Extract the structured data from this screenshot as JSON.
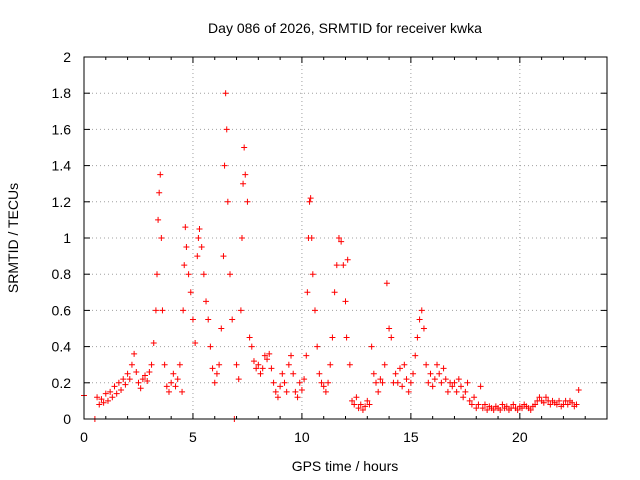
{
  "chart_data": {
    "type": "scatter",
    "title": "Day 086 of 2026, SRMTID for receiver kwka",
    "xlabel": "GPS time / hours",
    "ylabel": "SRMTID / TECUs",
    "xlim": [
      0,
      24
    ],
    "ylim": [
      0,
      2
    ],
    "xticks": [
      "0",
      "5",
      "10",
      "15",
      "20"
    ],
    "yticks": [
      "0",
      "0.2",
      "0.4",
      "0.6",
      "0.8",
      "1",
      "1.2",
      "1.4",
      "1.6",
      "1.8",
      "2"
    ],
    "grid": true,
    "marker": "+",
    "color": "#ff0000",
    "series": [
      {
        "name": "kwka",
        "points": [
          [
            0.0,
            0.13
          ],
          [
            0.5,
            0.0
          ],
          [
            0.6,
            0.12
          ],
          [
            0.7,
            0.08
          ],
          [
            0.8,
            0.11
          ],
          [
            0.9,
            0.09
          ],
          [
            1.0,
            0.14
          ],
          [
            1.1,
            0.1
          ],
          [
            1.2,
            0.15
          ],
          [
            1.3,
            0.12
          ],
          [
            1.4,
            0.18
          ],
          [
            1.5,
            0.14
          ],
          [
            1.6,
            0.2
          ],
          [
            1.7,
            0.16
          ],
          [
            1.8,
            0.22
          ],
          [
            1.9,
            0.19
          ],
          [
            2.0,
            0.25
          ],
          [
            2.1,
            0.22
          ],
          [
            2.2,
            0.3
          ],
          [
            2.3,
            0.36
          ],
          [
            2.4,
            0.26
          ],
          [
            2.5,
            0.2
          ],
          [
            2.6,
            0.17
          ],
          [
            2.7,
            0.22
          ],
          [
            2.8,
            0.24
          ],
          [
            2.9,
            0.21
          ],
          [
            3.0,
            0.26
          ],
          [
            3.1,
            0.3
          ],
          [
            3.2,
            0.42
          ],
          [
            3.3,
            0.6
          ],
          [
            3.35,
            0.8
          ],
          [
            3.4,
            1.1
          ],
          [
            3.45,
            1.25
          ],
          [
            3.5,
            1.35
          ],
          [
            3.55,
            1.0
          ],
          [
            3.6,
            0.6
          ],
          [
            3.7,
            0.3
          ],
          [
            3.8,
            0.18
          ],
          [
            3.9,
            0.15
          ],
          [
            4.0,
            0.2
          ],
          [
            4.1,
            0.25
          ],
          [
            4.2,
            0.18
          ],
          [
            4.3,
            0.22
          ],
          [
            4.4,
            0.3
          ],
          [
            4.5,
            0.15
          ],
          [
            4.55,
            0.6
          ],
          [
            4.6,
            0.85
          ],
          [
            4.65,
            1.06
          ],
          [
            4.7,
            0.95
          ],
          [
            4.8,
            0.8
          ],
          [
            4.9,
            0.7
          ],
          [
            5.0,
            0.55
          ],
          [
            5.1,
            0.42
          ],
          [
            5.2,
            0.9
          ],
          [
            5.25,
            1.0
          ],
          [
            5.3,
            1.05
          ],
          [
            5.4,
            0.95
          ],
          [
            5.5,
            0.8
          ],
          [
            5.6,
            0.65
          ],
          [
            5.7,
            0.55
          ],
          [
            5.8,
            0.4
          ],
          [
            5.9,
            0.28
          ],
          [
            6.0,
            0.2
          ],
          [
            6.1,
            0.25
          ],
          [
            6.2,
            0.3
          ],
          [
            6.3,
            0.5
          ],
          [
            6.4,
            0.9
          ],
          [
            6.45,
            1.4
          ],
          [
            6.5,
            1.8
          ],
          [
            6.55,
            1.6
          ],
          [
            6.6,
            1.2
          ],
          [
            6.7,
            0.8
          ],
          [
            6.8,
            0.55
          ],
          [
            6.9,
            0.0
          ],
          [
            7.0,
            0.3
          ],
          [
            7.1,
            0.22
          ],
          [
            7.2,
            0.6
          ],
          [
            7.25,
            1.0
          ],
          [
            7.3,
            1.3
          ],
          [
            7.35,
            1.5
          ],
          [
            7.4,
            1.35
          ],
          [
            7.5,
            1.2
          ],
          [
            7.6,
            0.45
          ],
          [
            7.7,
            0.4
          ],
          [
            7.8,
            0.32
          ],
          [
            7.9,
            0.28
          ],
          [
            8.0,
            0.3
          ],
          [
            8.1,
            0.25
          ],
          [
            8.2,
            0.28
          ],
          [
            8.3,
            0.35
          ],
          [
            8.4,
            0.33
          ],
          [
            8.5,
            0.36
          ],
          [
            8.6,
            0.28
          ],
          [
            8.7,
            0.2
          ],
          [
            8.8,
            0.15
          ],
          [
            8.9,
            0.12
          ],
          [
            9.0,
            0.18
          ],
          [
            9.1,
            0.25
          ],
          [
            9.2,
            0.2
          ],
          [
            9.3,
            0.15
          ],
          [
            9.4,
            0.3
          ],
          [
            9.5,
            0.35
          ],
          [
            9.6,
            0.25
          ],
          [
            9.7,
            0.15
          ],
          [
            9.8,
            0.12
          ],
          [
            9.9,
            0.2
          ],
          [
            10.0,
            0.16
          ],
          [
            10.1,
            0.22
          ],
          [
            10.2,
            0.35
          ],
          [
            10.25,
            0.7
          ],
          [
            10.3,
            1.0
          ],
          [
            10.35,
            1.2
          ],
          [
            10.4,
            1.22
          ],
          [
            10.45,
            1.0
          ],
          [
            10.5,
            0.8
          ],
          [
            10.6,
            0.6
          ],
          [
            10.7,
            0.4
          ],
          [
            10.8,
            0.25
          ],
          [
            10.9,
            0.2
          ],
          [
            11.0,
            0.18
          ],
          [
            11.1,
            0.15
          ],
          [
            11.2,
            0.2
          ],
          [
            11.3,
            0.3
          ],
          [
            11.4,
            0.45
          ],
          [
            11.5,
            0.7
          ],
          [
            11.6,
            0.85
          ],
          [
            11.7,
            1.0
          ],
          [
            11.8,
            0.98
          ],
          [
            11.9,
            0.85
          ],
          [
            12.0,
            0.65
          ],
          [
            12.05,
            0.45
          ],
          [
            12.1,
            0.88
          ],
          [
            12.2,
            0.3
          ],
          [
            12.3,
            0.1
          ],
          [
            12.4,
            0.08
          ],
          [
            12.5,
            0.12
          ],
          [
            12.6,
            0.06
          ],
          [
            12.7,
            0.08
          ],
          [
            12.8,
            0.05
          ],
          [
            12.9,
            0.07
          ],
          [
            13.0,
            0.1
          ],
          [
            13.1,
            0.08
          ],
          [
            13.2,
            0.4
          ],
          [
            13.3,
            0.25
          ],
          [
            13.4,
            0.2
          ],
          [
            13.5,
            0.15
          ],
          [
            13.6,
            0.22
          ],
          [
            13.7,
            0.2
          ],
          [
            13.8,
            0.3
          ],
          [
            13.9,
            0.75
          ],
          [
            14.0,
            0.5
          ],
          [
            14.1,
            0.45
          ],
          [
            14.2,
            0.2
          ],
          [
            14.3,
            0.25
          ],
          [
            14.4,
            0.2
          ],
          [
            14.5,
            0.28
          ],
          [
            14.6,
            0.18
          ],
          [
            14.7,
            0.3
          ],
          [
            14.8,
            0.22
          ],
          [
            14.9,
            0.15
          ],
          [
            15.0,
            0.2
          ],
          [
            15.1,
            0.25
          ],
          [
            15.2,
            0.35
          ],
          [
            15.3,
            0.45
          ],
          [
            15.4,
            0.55
          ],
          [
            15.5,
            0.6
          ],
          [
            15.6,
            0.5
          ],
          [
            15.7,
            0.3
          ],
          [
            15.8,
            0.2
          ],
          [
            15.9,
            0.25
          ],
          [
            16.0,
            0.18
          ],
          [
            16.1,
            0.22
          ],
          [
            16.2,
            0.3
          ],
          [
            16.3,
            0.25
          ],
          [
            16.4,
            0.2
          ],
          [
            16.5,
            0.28
          ],
          [
            16.6,
            0.22
          ],
          [
            16.7,
            0.15
          ],
          [
            16.8,
            0.2
          ],
          [
            16.9,
            0.18
          ],
          [
            17.0,
            0.2
          ],
          [
            17.1,
            0.15
          ],
          [
            17.2,
            0.22
          ],
          [
            17.3,
            0.18
          ],
          [
            17.4,
            0.12
          ],
          [
            17.5,
            0.15
          ],
          [
            17.6,
            0.2
          ],
          [
            17.7,
            0.1
          ],
          [
            17.8,
            0.08
          ],
          [
            17.9,
            0.12
          ],
          [
            18.0,
            0.06
          ],
          [
            18.1,
            0.08
          ],
          [
            18.2,
            0.18
          ],
          [
            18.3,
            0.06
          ],
          [
            18.4,
            0.08
          ],
          [
            18.5,
            0.05
          ],
          [
            18.6,
            0.07
          ],
          [
            18.7,
            0.06
          ],
          [
            18.8,
            0.05
          ],
          [
            18.9,
            0.07
          ],
          [
            19.0,
            0.06
          ],
          [
            19.1,
            0.05
          ],
          [
            19.2,
            0.08
          ],
          [
            19.3,
            0.06
          ],
          [
            19.4,
            0.07
          ],
          [
            19.5,
            0.05
          ],
          [
            19.6,
            0.06
          ],
          [
            19.7,
            0.08
          ],
          [
            19.8,
            0.06
          ],
          [
            19.9,
            0.05
          ],
          [
            20.0,
            0.07
          ],
          [
            20.1,
            0.06
          ],
          [
            20.2,
            0.08
          ],
          [
            20.3,
            0.07
          ],
          [
            20.4,
            0.06
          ],
          [
            20.5,
            0.05
          ],
          [
            20.6,
            0.07
          ],
          [
            20.7,
            0.08
          ],
          [
            20.8,
            0.1
          ],
          [
            20.9,
            0.12
          ],
          [
            21.0,
            0.1
          ],
          [
            21.1,
            0.09
          ],
          [
            21.2,
            0.12
          ],
          [
            21.3,
            0.1
          ],
          [
            21.4,
            0.08
          ],
          [
            21.5,
            0.1
          ],
          [
            21.6,
            0.09
          ],
          [
            21.7,
            0.08
          ],
          [
            21.8,
            0.1
          ],
          [
            21.9,
            0.07
          ],
          [
            22.0,
            0.08
          ],
          [
            22.1,
            0.1
          ],
          [
            22.2,
            0.08
          ],
          [
            22.3,
            0.1
          ],
          [
            22.4,
            0.09
          ],
          [
            22.5,
            0.07
          ],
          [
            22.6,
            0.08
          ],
          [
            22.7,
            0.16
          ]
        ]
      }
    ]
  }
}
